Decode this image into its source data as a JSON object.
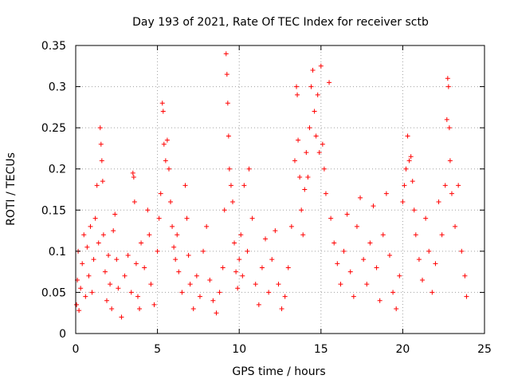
{
  "chart_data": {
    "type": "scatter",
    "title": "Day 193 of 2021, Rate Of TEC Index for receiver sctb",
    "xlabel": "GPS time / hours",
    "ylabel": "ROTI / TECUs",
    "xlim": [
      0,
      25
    ],
    "ylim": [
      0,
      0.35
    ],
    "xticks": [
      0,
      5,
      10,
      15,
      20,
      25
    ],
    "yticks": [
      0,
      0.05,
      0.1,
      0.15,
      0.2,
      0.25,
      0.3,
      0.35
    ],
    "xtick_labels": [
      "0",
      "5",
      "10",
      "15",
      "20",
      "25"
    ],
    "ytick_labels": [
      "0",
      "0.05",
      "0.1",
      "0.15",
      "0.2",
      "0.25",
      "0.3",
      "0.35"
    ],
    "grid": true,
    "marker": "plus",
    "color": "#ff0000",
    "series": [
      {
        "points": [
          [
            0.05,
            0.035
          ],
          [
            0.1,
            0.065
          ],
          [
            0.15,
            0.1
          ],
          [
            0.2,
            0.028
          ],
          [
            0.3,
            0.055
          ],
          [
            0.4,
            0.085
          ],
          [
            0.5,
            0.12
          ],
          [
            0.6,
            0.045
          ],
          [
            0.7,
            0.105
          ],
          [
            0.8,
            0.07
          ],
          [
            0.9,
            0.13
          ],
          [
            1.0,
            0.05
          ],
          [
            1.1,
            0.09
          ],
          [
            1.2,
            0.14
          ],
          [
            1.3,
            0.18
          ],
          [
            1.4,
            0.11
          ],
          [
            1.5,
            0.25
          ],
          [
            1.55,
            0.23
          ],
          [
            1.6,
            0.21
          ],
          [
            1.65,
            0.185
          ],
          [
            1.7,
            0.12
          ],
          [
            1.8,
            0.075
          ],
          [
            1.9,
            0.04
          ],
          [
            2.0,
            0.095
          ],
          [
            2.1,
            0.06
          ],
          [
            2.2,
            0.03
          ],
          [
            2.3,
            0.125
          ],
          [
            2.4,
            0.145
          ],
          [
            2.5,
            0.09
          ],
          [
            2.6,
            0.055
          ],
          [
            2.8,
            0.02
          ],
          [
            3.0,
            0.07
          ],
          [
            3.2,
            0.095
          ],
          [
            3.4,
            0.05
          ],
          [
            3.5,
            0.195
          ],
          [
            3.55,
            0.19
          ],
          [
            3.6,
            0.16
          ],
          [
            3.7,
            0.085
          ],
          [
            3.8,
            0.045
          ],
          [
            3.9,
            0.03
          ],
          [
            4.0,
            0.11
          ],
          [
            4.2,
            0.08
          ],
          [
            4.4,
            0.15
          ],
          [
            4.5,
            0.12
          ],
          [
            4.6,
            0.06
          ],
          [
            4.8,
            0.035
          ],
          [
            5.0,
            0.1
          ],
          [
            5.1,
            0.14
          ],
          [
            5.2,
            0.17
          ],
          [
            5.3,
            0.28
          ],
          [
            5.35,
            0.27
          ],
          [
            5.4,
            0.23
          ],
          [
            5.5,
            0.21
          ],
          [
            5.6,
            0.235
          ],
          [
            5.7,
            0.2
          ],
          [
            5.8,
            0.16
          ],
          [
            5.9,
            0.13
          ],
          [
            6.0,
            0.105
          ],
          [
            6.1,
            0.09
          ],
          [
            6.2,
            0.12
          ],
          [
            6.3,
            0.075
          ],
          [
            6.5,
            0.05
          ],
          [
            6.7,
            0.18
          ],
          [
            6.8,
            0.14
          ],
          [
            6.9,
            0.095
          ],
          [
            7.0,
            0.06
          ],
          [
            7.2,
            0.03
          ],
          [
            7.4,
            0.07
          ],
          [
            7.6,
            0.045
          ],
          [
            7.8,
            0.1
          ],
          [
            8.0,
            0.13
          ],
          [
            8.2,
            0.065
          ],
          [
            8.4,
            0.04
          ],
          [
            8.6,
            0.025
          ],
          [
            8.8,
            0.05
          ],
          [
            9.0,
            0.08
          ],
          [
            9.1,
            0.15
          ],
          [
            9.2,
            0.34
          ],
          [
            9.25,
            0.315
          ],
          [
            9.3,
            0.28
          ],
          [
            9.35,
            0.24
          ],
          [
            9.4,
            0.2
          ],
          [
            9.5,
            0.18
          ],
          [
            9.6,
            0.16
          ],
          [
            9.7,
            0.11
          ],
          [
            9.8,
            0.075
          ],
          [
            9.9,
            0.055
          ],
          [
            10.0,
            0.09
          ],
          [
            10.1,
            0.12
          ],
          [
            10.2,
            0.07
          ],
          [
            10.3,
            0.18
          ],
          [
            10.5,
            0.1
          ],
          [
            10.6,
            0.2
          ],
          [
            10.8,
            0.14
          ],
          [
            11.0,
            0.06
          ],
          [
            11.2,
            0.035
          ],
          [
            11.4,
            0.08
          ],
          [
            11.6,
            0.115
          ],
          [
            11.8,
            0.05
          ],
          [
            12.0,
            0.09
          ],
          [
            12.2,
            0.125
          ],
          [
            12.4,
            0.06
          ],
          [
            12.6,
            0.03
          ],
          [
            12.8,
            0.045
          ],
          [
            13.0,
            0.08
          ],
          [
            13.2,
            0.13
          ],
          [
            13.4,
            0.21
          ],
          [
            13.5,
            0.3
          ],
          [
            13.55,
            0.29
          ],
          [
            13.6,
            0.235
          ],
          [
            13.7,
            0.19
          ],
          [
            13.8,
            0.15
          ],
          [
            13.9,
            0.12
          ],
          [
            14.0,
            0.175
          ],
          [
            14.1,
            0.22
          ],
          [
            14.2,
            0.19
          ],
          [
            14.3,
            0.25
          ],
          [
            14.4,
            0.3
          ],
          [
            14.5,
            0.32
          ],
          [
            14.6,
            0.27
          ],
          [
            14.7,
            0.24
          ],
          [
            14.8,
            0.29
          ],
          [
            14.9,
            0.22
          ],
          [
            15.0,
            0.325
          ],
          [
            15.1,
            0.23
          ],
          [
            15.2,
            0.2
          ],
          [
            15.3,
            0.17
          ],
          [
            15.5,
            0.305
          ],
          [
            15.6,
            0.14
          ],
          [
            15.8,
            0.11
          ],
          [
            16.0,
            0.085
          ],
          [
            16.2,
            0.06
          ],
          [
            16.4,
            0.1
          ],
          [
            16.6,
            0.145
          ],
          [
            16.8,
            0.075
          ],
          [
            17.0,
            0.045
          ],
          [
            17.2,
            0.13
          ],
          [
            17.4,
            0.165
          ],
          [
            17.6,
            0.09
          ],
          [
            17.8,
            0.06
          ],
          [
            18.0,
            0.11
          ],
          [
            18.2,
            0.155
          ],
          [
            18.4,
            0.08
          ],
          [
            18.6,
            0.04
          ],
          [
            18.8,
            0.12
          ],
          [
            19.0,
            0.17
          ],
          [
            19.2,
            0.095
          ],
          [
            19.4,
            0.05
          ],
          [
            19.6,
            0.03
          ],
          [
            19.8,
            0.07
          ],
          [
            20.0,
            0.16
          ],
          [
            20.1,
            0.18
          ],
          [
            20.2,
            0.2
          ],
          [
            20.3,
            0.24
          ],
          [
            20.4,
            0.21
          ],
          [
            20.5,
            0.215
          ],
          [
            20.6,
            0.185
          ],
          [
            20.7,
            0.15
          ],
          [
            20.8,
            0.12
          ],
          [
            21.0,
            0.09
          ],
          [
            21.2,
            0.065
          ],
          [
            21.4,
            0.14
          ],
          [
            21.6,
            0.1
          ],
          [
            21.8,
            0.05
          ],
          [
            22.0,
            0.085
          ],
          [
            22.2,
            0.16
          ],
          [
            22.4,
            0.12
          ],
          [
            22.6,
            0.18
          ],
          [
            22.7,
            0.26
          ],
          [
            22.75,
            0.31
          ],
          [
            22.8,
            0.3
          ],
          [
            22.85,
            0.25
          ],
          [
            22.9,
            0.21
          ],
          [
            23.0,
            0.17
          ],
          [
            23.2,
            0.13
          ],
          [
            23.4,
            0.18
          ],
          [
            23.6,
            0.1
          ],
          [
            23.8,
            0.07
          ],
          [
            23.9,
            0.045
          ]
        ]
      }
    ]
  }
}
